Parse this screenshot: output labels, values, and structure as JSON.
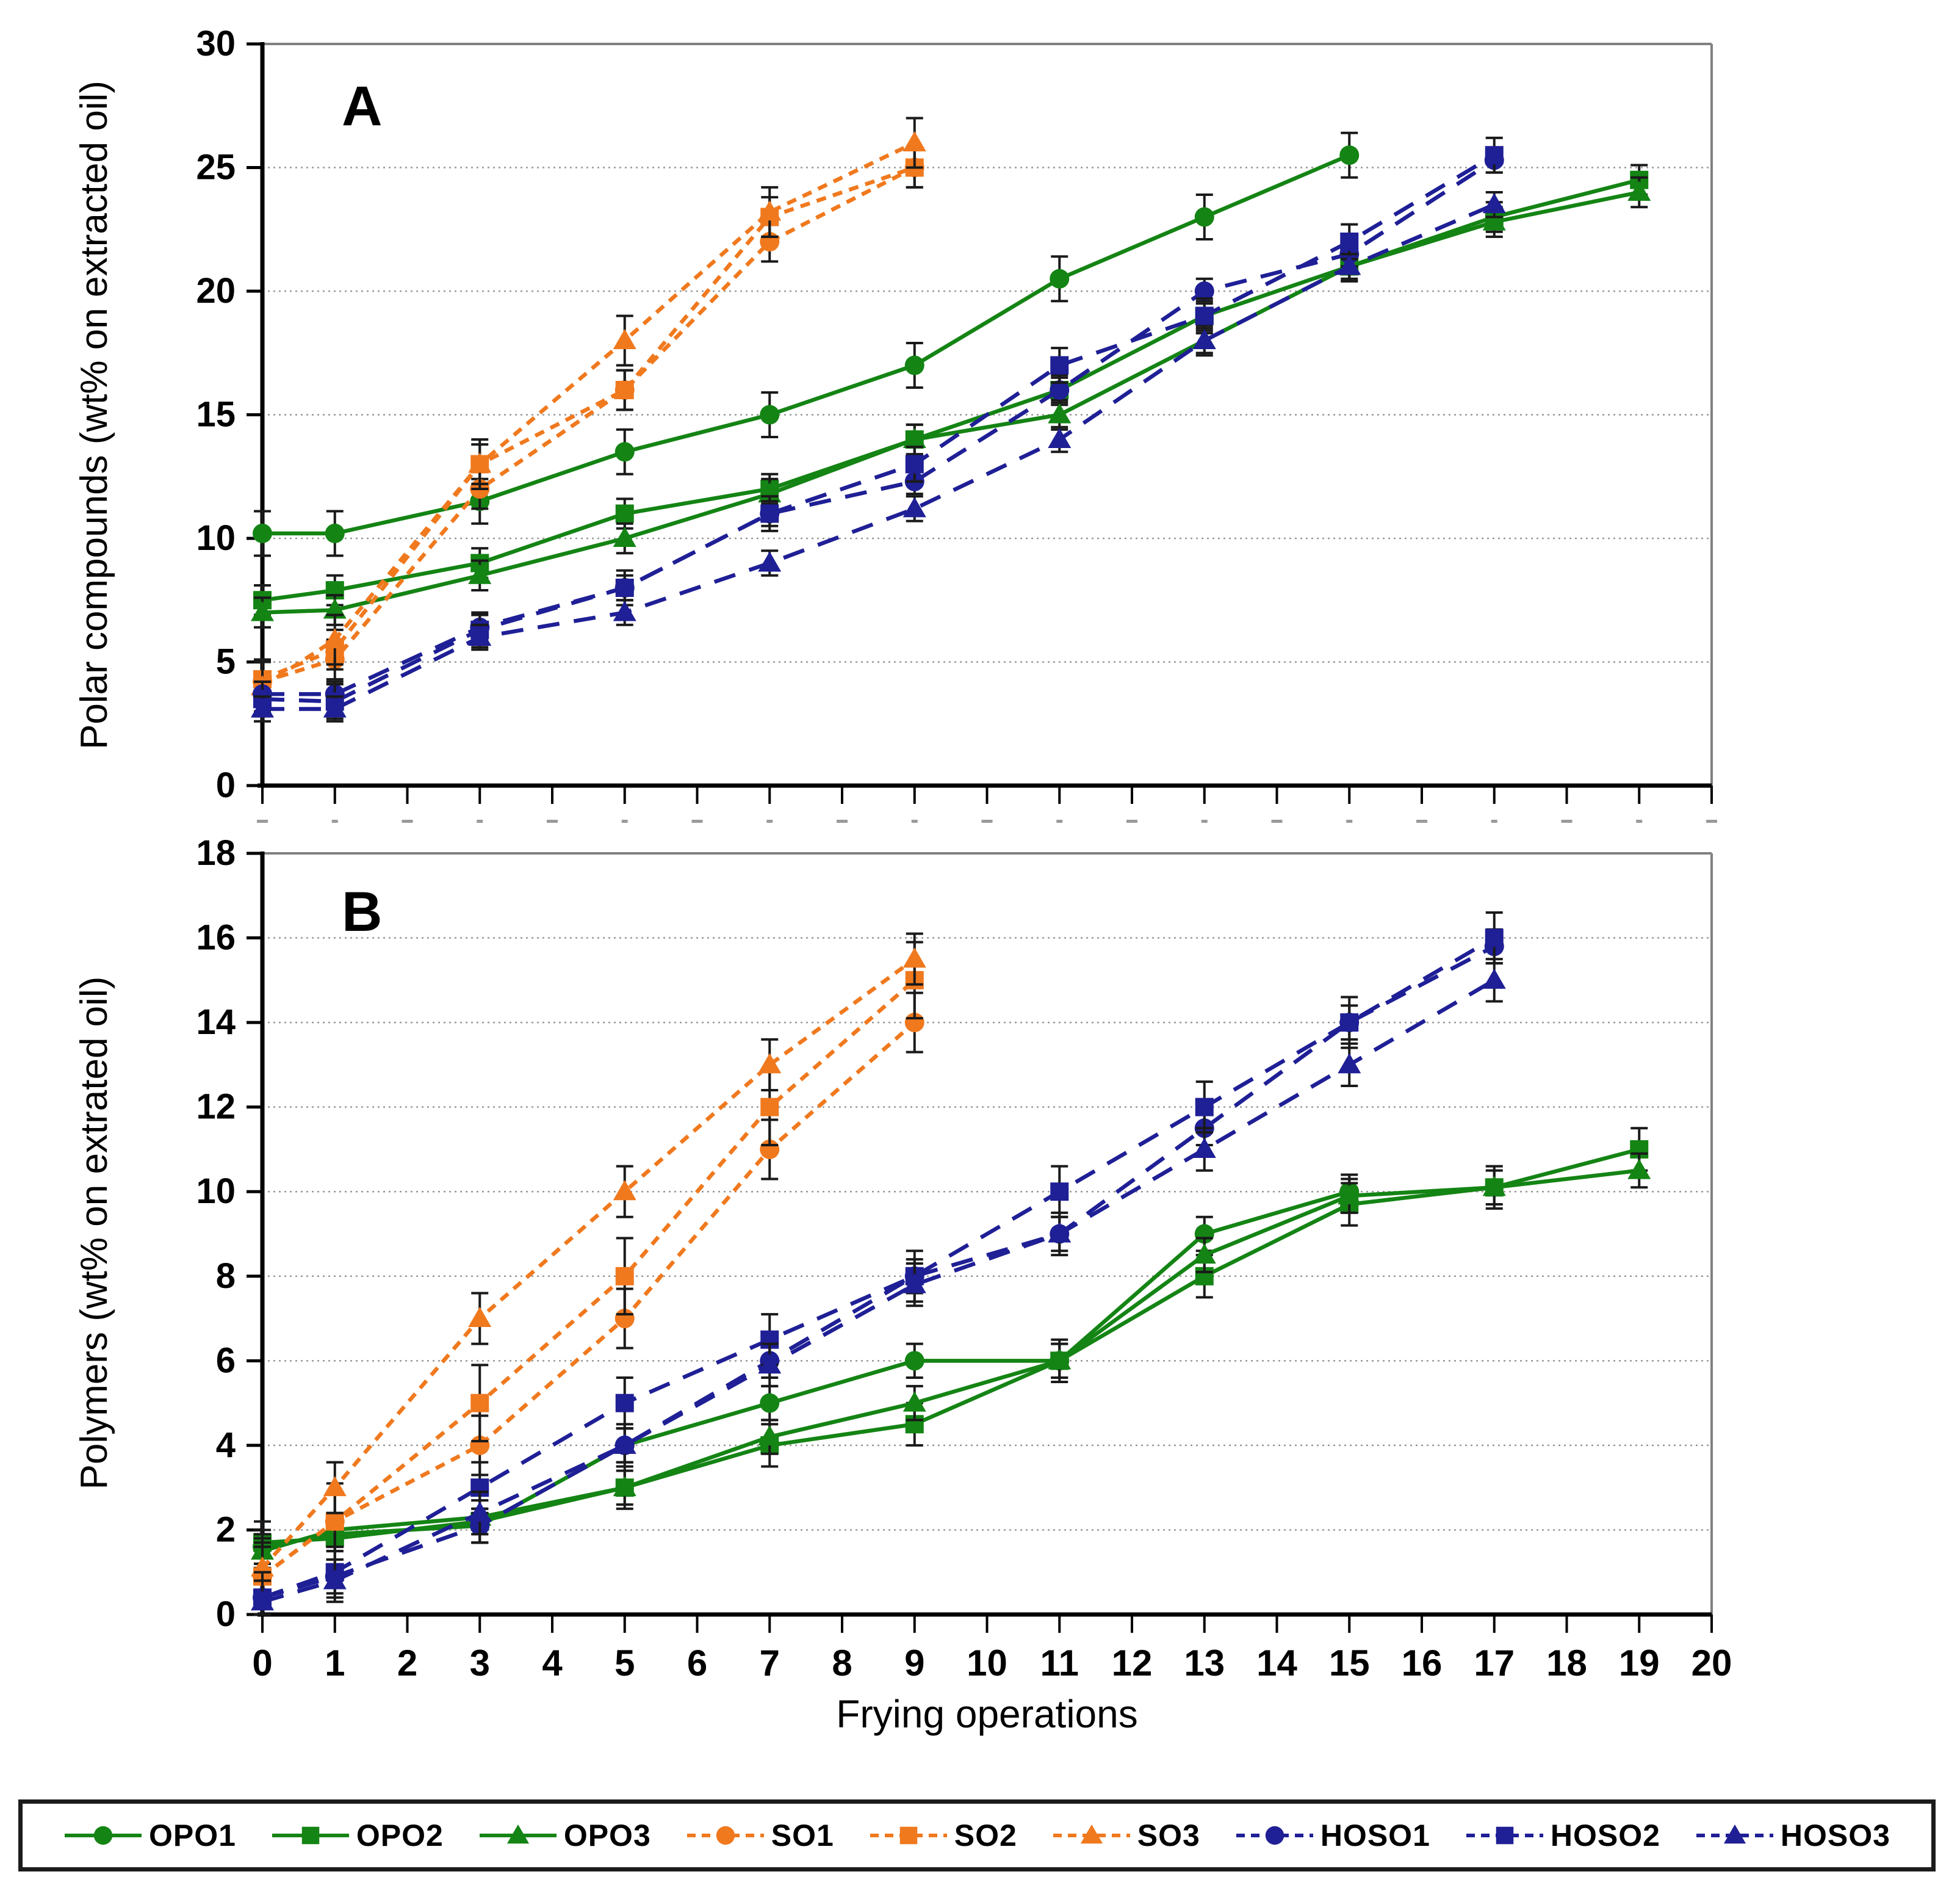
{
  "figure": {
    "xlabel": "Frying operations",
    "panel_a_letter": "A",
    "panel_b_letter": "B"
  },
  "colors": {
    "opo_green": "#148414",
    "so_orange": "#F0791E",
    "hoso_navy": "#1F1F96",
    "error_bar": "#1a1a1a",
    "gridline": "#999999",
    "frame_gray": "#808080",
    "axis_black": "#000000"
  },
  "chart_data": [
    {
      "id": "panel_a",
      "type": "line",
      "panel_letter": "A",
      "ylabel": "Polar compounds (wt% on extracted oil)",
      "xlabel": "Frying operations",
      "xlim": [
        0,
        20
      ],
      "ylim": [
        0,
        30
      ],
      "x_ticks": [
        0,
        1,
        2,
        3,
        4,
        5,
        6,
        7,
        8,
        9,
        10,
        11,
        12,
        13,
        14,
        15,
        16,
        17,
        18,
        19,
        20
      ],
      "y_ticks": [
        0,
        5,
        10,
        15,
        20,
        25,
        30
      ],
      "grid": "horizontal-dotted",
      "show_x_tick_labels": false,
      "series": [
        {
          "name": "OPO1",
          "color": "#148414",
          "marker": "circle",
          "line": "solid",
          "err": 0.9,
          "x": [
            0,
            1,
            3,
            5,
            7,
            9,
            11,
            13,
            15
          ],
          "y": [
            10.2,
            10.2,
            11.5,
            13.5,
            15,
            17,
            20.5,
            23,
            25.5
          ]
        },
        {
          "name": "OPO2",
          "color": "#148414",
          "marker": "square",
          "line": "solid",
          "err": 0.6,
          "x": [
            0,
            1,
            3,
            5,
            7,
            9,
            11,
            13,
            15,
            17,
            19
          ],
          "y": [
            7.5,
            7.9,
            9,
            11,
            12,
            14,
            16,
            19,
            21,
            23,
            24.5
          ]
        },
        {
          "name": "OPO3",
          "color": "#148414",
          "marker": "triangle",
          "line": "solid",
          "err": 0.6,
          "x": [
            0,
            1,
            3,
            5,
            7,
            9,
            11,
            13,
            15,
            17,
            19
          ],
          "y": [
            7.0,
            7.1,
            8.5,
            10,
            11.8,
            14,
            15,
            18,
            21,
            22.8,
            24
          ]
        },
        {
          "name": "SO1",
          "color": "#F0791E",
          "marker": "circle",
          "line": "dashed-short",
          "err": 0.8,
          "x": [
            0,
            1,
            3,
            5,
            7,
            9
          ],
          "y": [
            4.2,
            5.1,
            12,
            16,
            22,
            25
          ]
        },
        {
          "name": "SO2",
          "color": "#F0791E",
          "marker": "square",
          "line": "dashed-short",
          "err": 0.8,
          "x": [
            0,
            1,
            3,
            5,
            7,
            9
          ],
          "y": [
            4.3,
            5.5,
            13,
            16,
            23,
            25
          ]
        },
        {
          "name": "SO3",
          "color": "#F0791E",
          "marker": "triangle",
          "line": "dashed-short",
          "err": 1.0,
          "x": [
            0,
            1,
            3,
            5,
            7,
            9
          ],
          "y": [
            4.0,
            5.9,
            13.0,
            18,
            23.2,
            26
          ]
        },
        {
          "name": "HOSO1",
          "color": "#1F1F96",
          "marker": "circle",
          "line": "dashed-long",
          "err": 0.5,
          "x": [
            0,
            1,
            3,
            5,
            7,
            9,
            11,
            13,
            15,
            17
          ],
          "y": [
            3.7,
            3.7,
            6.4,
            8,
            11,
            12.3,
            16,
            20,
            21.5,
            25.3
          ]
        },
        {
          "name": "HOSO2",
          "color": "#1F1F96",
          "marker": "square",
          "line": "dashed-long",
          "err": 0.7,
          "x": [
            0,
            1,
            3,
            5,
            7,
            9,
            11,
            13,
            15,
            17
          ],
          "y": [
            3.5,
            3.4,
            6.3,
            8,
            11,
            13,
            17,
            19,
            22,
            25.5
          ]
        },
        {
          "name": "HOSO3",
          "color": "#1F1F96",
          "marker": "triangle",
          "line": "dashed-long",
          "err": 0.5,
          "x": [
            0,
            1,
            3,
            5,
            7,
            9,
            11,
            13,
            15,
            17
          ],
          "y": [
            3.1,
            3.1,
            6.0,
            7,
            9,
            11.2,
            14,
            18,
            21,
            23.5
          ]
        }
      ]
    },
    {
      "id": "panel_b",
      "type": "line",
      "panel_letter": "B",
      "ylabel": "Polymers (wt% on extrated oil)",
      "xlabel": "Frying operations",
      "xlim": [
        0,
        20
      ],
      "ylim": [
        0,
        18
      ],
      "x_ticks": [
        0,
        1,
        2,
        3,
        4,
        5,
        6,
        7,
        8,
        9,
        10,
        11,
        12,
        13,
        14,
        15,
        16,
        17,
        18,
        19,
        20
      ],
      "y_ticks": [
        0,
        2,
        4,
        6,
        8,
        10,
        12,
        14,
        16,
        18
      ],
      "grid": "horizontal-dotted",
      "show_x_tick_labels": true,
      "series": [
        {
          "name": "OPO1",
          "color": "#148414",
          "marker": "circle",
          "line": "solid",
          "err": 0.4,
          "x": [
            0,
            1,
            3,
            5,
            7,
            9,
            11,
            13,
            15
          ],
          "y": [
            1.6,
            1.9,
            2.1,
            4,
            5,
            6,
            6,
            9,
            10
          ]
        },
        {
          "name": "OPO2",
          "color": "#148414",
          "marker": "square",
          "line": "solid",
          "err": 0.5,
          "x": [
            0,
            1,
            3,
            5,
            7,
            9,
            11,
            13,
            15,
            17,
            19
          ],
          "y": [
            1.7,
            1.8,
            2.2,
            3,
            4,
            4.5,
            6,
            8,
            9.7,
            10.1,
            11
          ]
        },
        {
          "name": "OPO3",
          "color": "#148414",
          "marker": "triangle",
          "line": "solid",
          "err": 0.4,
          "x": [
            0,
            1,
            3,
            5,
            7,
            9,
            11,
            13,
            15,
            17,
            19
          ],
          "y": [
            1.5,
            2.0,
            2.3,
            3,
            4.2,
            5,
            6,
            8.5,
            9.9,
            10.1,
            10.5
          ]
        },
        {
          "name": "SO1",
          "color": "#F0791E",
          "marker": "circle",
          "line": "dashed-short",
          "err": 0.7,
          "x": [
            0,
            1,
            3,
            5,
            7,
            9
          ],
          "y": [
            0.9,
            2.2,
            4,
            7,
            11,
            14
          ]
        },
        {
          "name": "SO2",
          "color": "#F0791E",
          "marker": "square",
          "line": "dashed-short",
          "err": 0.9,
          "x": [
            0,
            1,
            3,
            5,
            7,
            9
          ],
          "y": [
            0.9,
            2.2,
            5,
            8,
            12,
            15
          ]
        },
        {
          "name": "SO3",
          "color": "#F0791E",
          "marker": "triangle",
          "line": "dashed-short",
          "err": 0.6,
          "x": [
            0,
            1,
            3,
            5,
            7,
            9
          ],
          "y": [
            1.1,
            3.0,
            7,
            10,
            13,
            15.5
          ]
        },
        {
          "name": "HOSO1",
          "color": "#1F1F96",
          "marker": "circle",
          "line": "dashed-long",
          "err": 0.4,
          "x": [
            0,
            1,
            3,
            5,
            7,
            9,
            11,
            13,
            15,
            17
          ],
          "y": [
            0.4,
            0.9,
            2.1,
            4,
            6,
            8,
            9,
            11.5,
            14,
            15.8
          ]
        },
        {
          "name": "HOSO2",
          "color": "#1F1F96",
          "marker": "square",
          "line": "dashed-long",
          "err": 0.6,
          "x": [
            0,
            1,
            3,
            5,
            7,
            9,
            11,
            13,
            15,
            17
          ],
          "y": [
            0.4,
            1.0,
            3,
            5,
            6.5,
            8,
            10,
            12,
            14,
            16
          ]
        },
        {
          "name": "HOSO3",
          "color": "#1F1F96",
          "marker": "triangle",
          "line": "dashed-long",
          "err": 0.5,
          "x": [
            0,
            1,
            3,
            5,
            7,
            9,
            11,
            13,
            15,
            17
          ],
          "y": [
            0.3,
            0.8,
            2.4,
            4,
            5.9,
            7.8,
            9,
            11,
            13,
            15
          ]
        }
      ]
    }
  ],
  "legend": {
    "position": "bottom",
    "items": [
      {
        "label": "OPO1",
        "color": "#148414",
        "marker": "circle",
        "line": "solid"
      },
      {
        "label": "OPO2",
        "color": "#148414",
        "marker": "square",
        "line": "solid"
      },
      {
        "label": "OPO3",
        "color": "#148414",
        "marker": "triangle",
        "line": "solid"
      },
      {
        "label": "SO1",
        "color": "#F0791E",
        "marker": "circle",
        "line": "dashed-short"
      },
      {
        "label": "SO2",
        "color": "#F0791E",
        "marker": "square",
        "line": "dashed-short"
      },
      {
        "label": "SO3",
        "color": "#F0791E",
        "marker": "triangle",
        "line": "dashed-short"
      },
      {
        "label": "HOSO1",
        "color": "#1F1F96",
        "marker": "circle",
        "line": "dashed-long"
      },
      {
        "label": "HOSO2",
        "color": "#1F1F96",
        "marker": "square",
        "line": "dashed-long"
      },
      {
        "label": "HOSO3",
        "color": "#1F1F96",
        "marker": "triangle",
        "line": "dashed-long"
      }
    ]
  }
}
